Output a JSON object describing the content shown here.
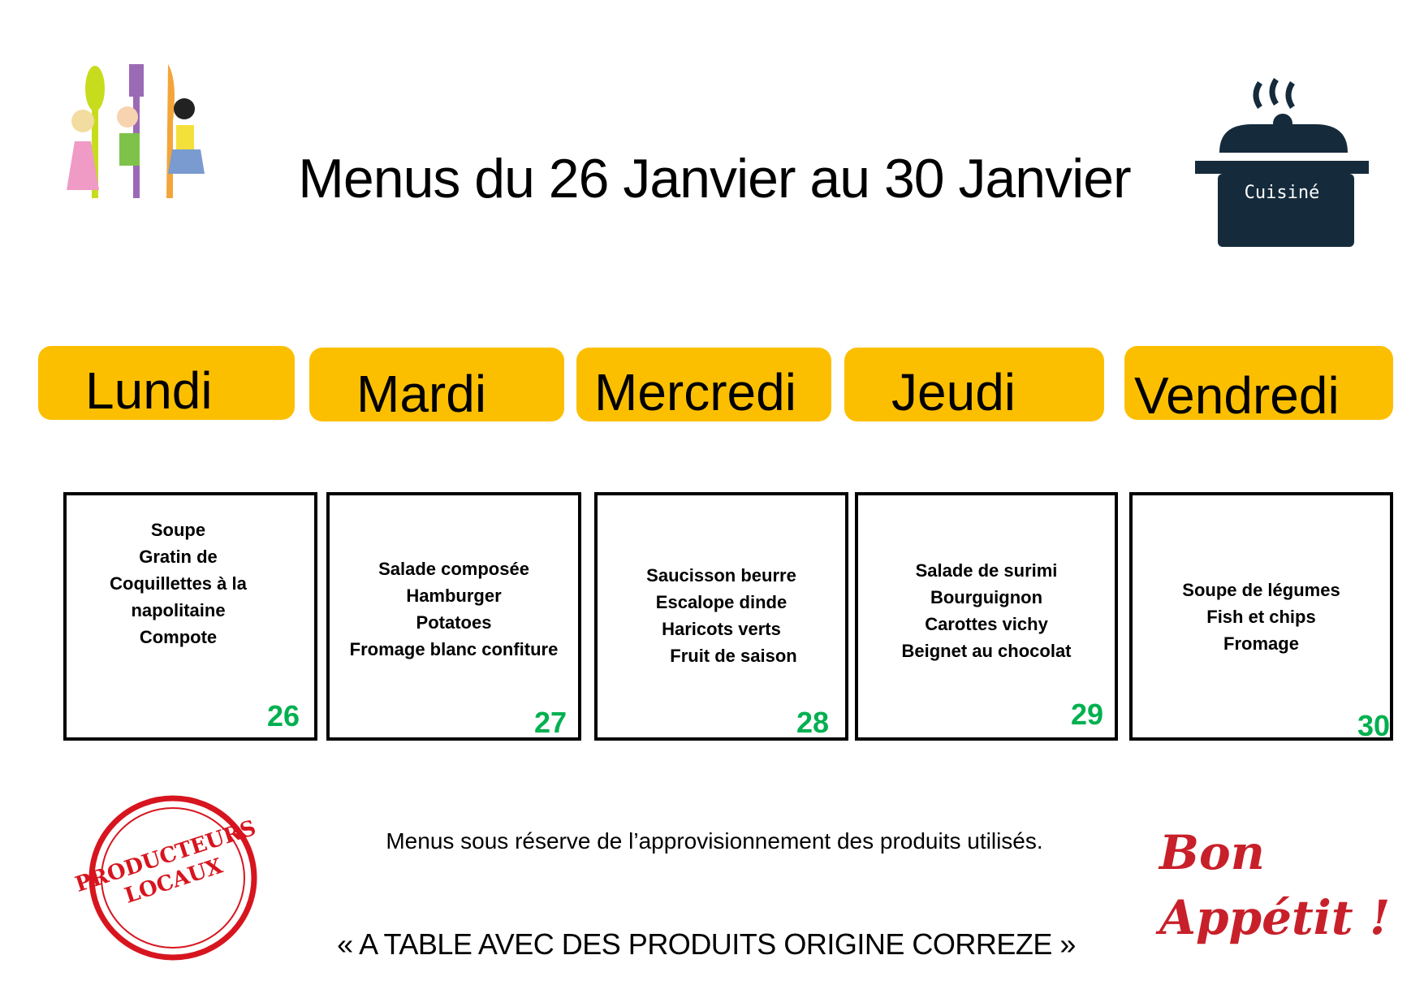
{
  "header": {
    "title": "Menus du 26 Janvier au 30 Janvier",
    "pot_label": "Cuisiné"
  },
  "days": [
    {
      "name": "Lundi",
      "date": "26",
      "menu": [
        "Soupe",
        "Gratin de",
        "Coquillettes à la",
        "napolitaine",
        "Compote"
      ]
    },
    {
      "name": "Mardi",
      "date": "27",
      "menu": [
        "Salade composée",
        "Hamburger",
        "Potatoes",
        "Fromage blanc confiture"
      ]
    },
    {
      "name": "Mercredi",
      "date": "28",
      "menu": [
        "Saucisson beurre",
        "Escalope dinde",
        "Haricots verts",
        "Fruit de saison"
      ]
    },
    {
      "name": "Jeudi",
      "date": "29",
      "menu": [
        "Salade de surimi",
        "Bourguignon",
        "Carottes vichy",
        "Beignet au chocolat"
      ]
    },
    {
      "name": "Vendredi",
      "date": "30",
      "menu": [
        "Soupe de légumes",
        "Fish et chips",
        "Fromage"
      ]
    }
  ],
  "footer": {
    "note": "Menus sous réserve de l’approvisionnement des produits utilisés.",
    "slogan": "« A TABLE AVEC DES PRODUITS ORIGINE CORREZE »",
    "stamp_text": "PRODUCTEURS LOCAUX",
    "bon_appetit": "Bon Appétit !"
  },
  "colors": {
    "pill": "#fcbf00",
    "date": "#00b050",
    "pot": "#152b3c",
    "stamp": "#d7151f"
  }
}
